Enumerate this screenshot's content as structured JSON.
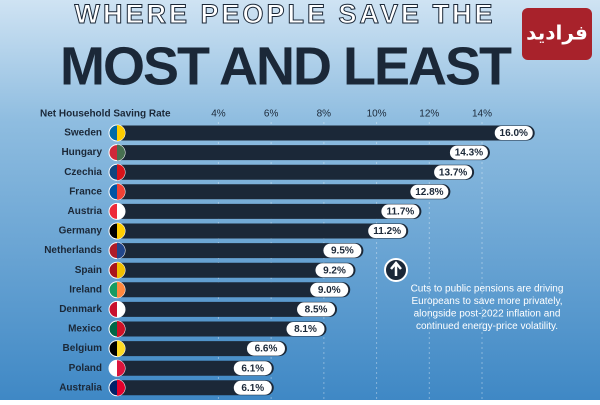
{
  "chart_data": {
    "type": "bar",
    "orientation": "horizontal",
    "title": "WHERE PEOPLE SAVE THE",
    "subtitle": "MOST AND LEAST",
    "watermark": "فرادید",
    "x_label": "Net Household Saving Rate",
    "categories": [
      "Sweden",
      "Hungary",
      "Czechia",
      "France",
      "Austria",
      "Germany",
      "Netherlands",
      "Spain",
      "Ireland",
      "Denmark",
      "Mexico",
      "Belgium",
      "Poland",
      "Australia"
    ],
    "values": [
      16.0,
      14.3,
      13.7,
      12.8,
      11.7,
      11.2,
      9.5,
      9.2,
      9.0,
      8.5,
      8.1,
      6.6,
      6.1,
      6.1
    ],
    "value_labels": [
      "16.0%",
      "14.3%",
      "13.7%",
      "12.8%",
      "11.7%",
      "11.2%",
      "9.5%",
      "9.2%",
      "9.0%",
      "8.5%",
      "8.1%",
      "6.6%",
      "6.1%",
      "6.1%"
    ],
    "color": "#1b2838",
    "xlim": [
      0,
      16.2
    ],
    "xticks": [
      {
        "value": 4,
        "label": "4%"
      },
      {
        "value": 6,
        "label": "6%"
      },
      {
        "value": 8,
        "label": "8%"
      },
      {
        "value": 10,
        "label": "10%"
      },
      {
        "value": 12,
        "label": "12%"
      },
      {
        "value": 14,
        "label": "14%"
      }
    ],
    "grid": true,
    "annotation": [
      "Cuts to public pensions are driving",
      "Europeans to save more privately,",
      "alongside post-2022 inflation and",
      "continued energy-price volatility."
    ]
  }
}
